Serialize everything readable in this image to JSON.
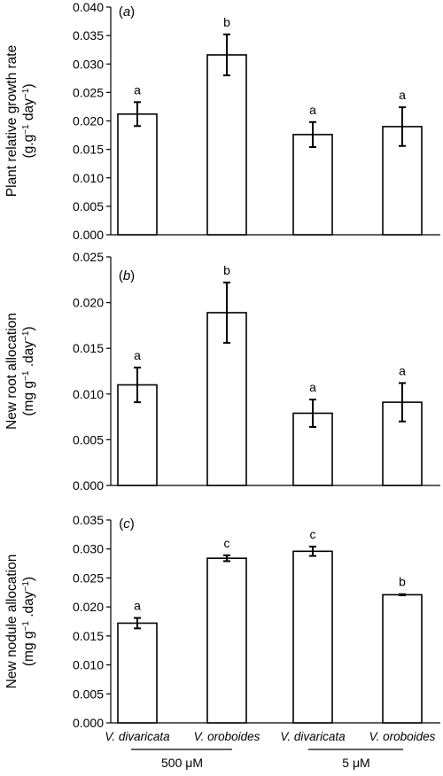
{
  "chart_data": [
    {
      "type": "bar",
      "panel_label": "(a)",
      "ylabel": [
        "Plant relative growth rate",
        "(g.g−1 day−1)"
      ],
      "ylim": [
        0,
        0.04
      ],
      "yticks": [
        "0.000",
        "0.005",
        "0.010",
        "0.015",
        "0.020",
        "0.025",
        "0.030",
        "0.035",
        "0.040"
      ],
      "categories": [
        "V. divaricata",
        "V. oroboides",
        "V. divaricata",
        "V. oroboides"
      ],
      "values": [
        0.0212,
        0.0316,
        0.0176,
        0.019
      ],
      "errors": [
        0.0021,
        0.0036,
        0.0022,
        0.0034
      ],
      "letters": [
        "a",
        "b",
        "a",
        "a"
      ]
    },
    {
      "type": "bar",
      "panel_label": "(b)",
      "ylabel": [
        "New root allocation",
        "(mg g−1 .day−1)"
      ],
      "ylim": [
        0,
        0.025
      ],
      "yticks": [
        "0.000",
        "0.005",
        "0.010",
        "0.015",
        "0.020",
        "0.025"
      ],
      "categories": [
        "V. divaricata",
        "V. oroboides",
        "V. divaricata",
        "V. oroboides"
      ],
      "values": [
        0.011,
        0.0189,
        0.0079,
        0.0091
      ],
      "errors": [
        0.0019,
        0.0033,
        0.0015,
        0.0021
      ],
      "letters": [
        "a",
        "b",
        "a",
        "a"
      ]
    },
    {
      "type": "bar",
      "panel_label": "(c)",
      "ylabel": [
        "New nodule allocation",
        "(mg g−1 .day−1)"
      ],
      "ylim": [
        0,
        0.035
      ],
      "yticks": [
        "0.000",
        "0.005",
        "0.010",
        "0.015",
        "0.020",
        "0.025",
        "0.030",
        "0.035"
      ],
      "categories": [
        "V. divaricata",
        "V. oroboides",
        "V. divaricata",
        "V. oroboides"
      ],
      "values": [
        0.0172,
        0.0284,
        0.0296,
        0.0221
      ],
      "errors": [
        0.0009,
        0.0005,
        0.0008,
        0.0001
      ],
      "letters": [
        "a",
        "c",
        "c",
        "b"
      ]
    }
  ],
  "groups": [
    {
      "label": "500 μM"
    },
    {
      "label": "5 μM"
    }
  ]
}
